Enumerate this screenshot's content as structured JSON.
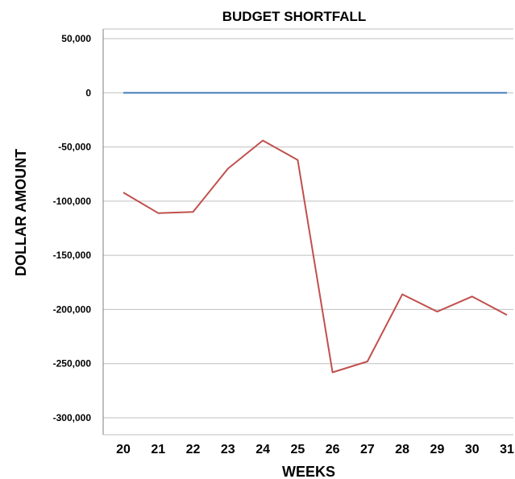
{
  "chart_data": {
    "type": "line",
    "title": "BUDGET SHORTFALL",
    "xlabel": "WEEKS",
    "ylabel": "DOLLAR AMOUNT",
    "categories": [
      "20",
      "21",
      "22",
      "23",
      "24",
      "25",
      "26",
      "27",
      "28",
      "29",
      "30",
      "31"
    ],
    "y_ticks": [
      "50,000",
      "0",
      "-50,000",
      "-100,000",
      "-150,000",
      "-200,000",
      "-250,000",
      "-300,000"
    ],
    "ylim": [
      -300000,
      50000
    ],
    "grid": true,
    "legend": "none",
    "series": [
      {
        "color": "#c0504d",
        "values": [
          -92000,
          -111000,
          -110000,
          -70000,
          -44000,
          -62000,
          -258000,
          -248000,
          -186000,
          -202000,
          -188000,
          -205000
        ]
      },
      {
        "color": "#4f81bd",
        "values": [
          0,
          0,
          0,
          0,
          0,
          0,
          0,
          0,
          0,
          0,
          0,
          0
        ]
      }
    ]
  }
}
